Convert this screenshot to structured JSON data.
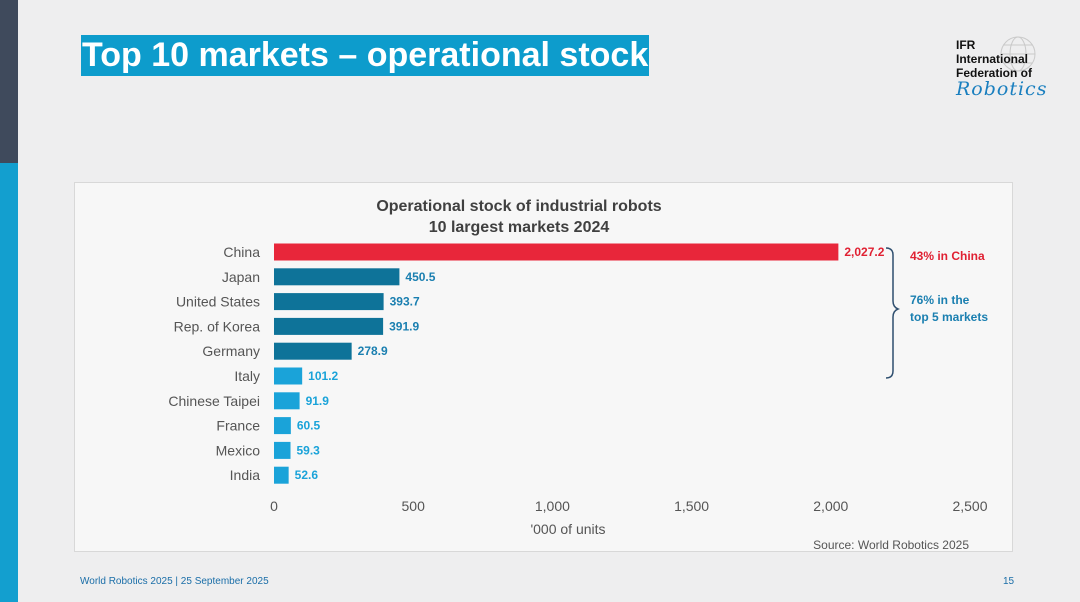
{
  "slide": {
    "title": "Top 10 markets – operational stock",
    "footer": "World Robotics 2025  | 25 September 2025",
    "page_number": "15"
  },
  "logo": {
    "line1": "IFR",
    "line2": "International",
    "line3": "Federation of",
    "script": "Robotics"
  },
  "colors": {
    "china_bar": "#e8263a",
    "top5_bar": "#0e7399",
    "other_bar": "#1aa3d9",
    "china_text": "#e02032",
    "top5_text": "#1a7fb0",
    "other_text": "#1aa3d9",
    "title_bg": "#0d9ccc"
  },
  "chart_data": {
    "type": "bar",
    "orientation": "horizontal",
    "title": "Operational stock of industrial robots",
    "subtitle": "10 largest markets 2024",
    "categories": [
      "China",
      "Japan",
      "United States",
      "Rep. of Korea",
      "Germany",
      "Italy",
      "Chinese Taipei",
      "France",
      "Mexico",
      "India"
    ],
    "values": [
      2027.2,
      450.5,
      393.7,
      391.9,
      278.9,
      101.2,
      91.9,
      60.5,
      59.3,
      52.6
    ],
    "value_labels": [
      "2,027.2",
      "450.5",
      "393.7",
      "391.9",
      "278.9",
      "101.2",
      "91.9",
      "60.5",
      "59.3",
      "52.6"
    ],
    "xlabel": "'000 of units",
    "xlim": [
      0,
      2500
    ],
    "xticks": [
      0,
      500,
      1000,
      1500,
      2000,
      2500
    ],
    "xtick_labels": [
      "0",
      "500",
      "1,000",
      "1,500",
      "2,000",
      "2,500"
    ],
    "grid": false,
    "annotations": {
      "china_note": "43% in China",
      "top5_note_line1": "76% in the",
      "top5_note_line2": "top 5 markets"
    },
    "source": "Source: World Robotics 2025"
  }
}
